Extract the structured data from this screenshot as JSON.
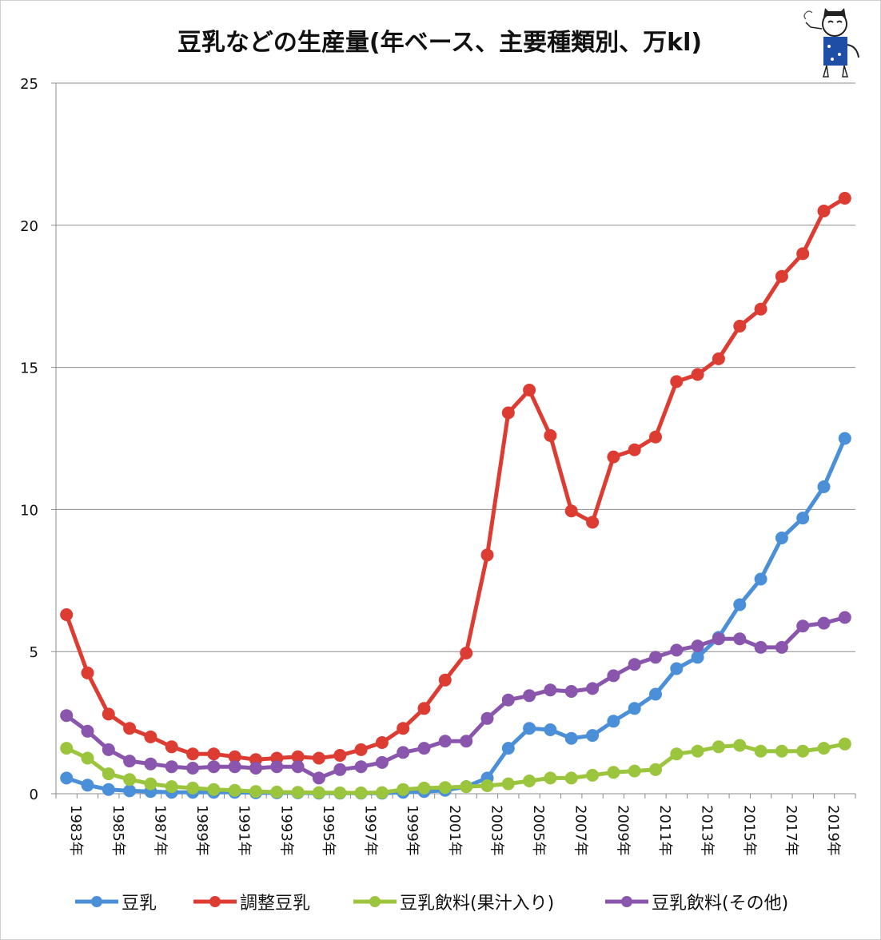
{
  "chart_data": {
    "type": "line",
    "title": "豆乳などの生産量(年ベース、主要種類別、万kl)",
    "ylim": [
      0,
      25
    ],
    "yticks": [
      "0",
      "5",
      "10",
      "15",
      "20",
      "25"
    ],
    "xtick_labels": [
      "1983年",
      "1985年",
      "1987年",
      "1989年",
      "1991年",
      "1993年",
      "1995年",
      "1997年",
      "1999年",
      "2001年",
      "2003年",
      "2005年",
      "2007年",
      "2009年",
      "2011年",
      "2013年",
      "2015年",
      "2017年",
      "2019年"
    ],
    "x": [
      1983,
      1984,
      1985,
      1986,
      1987,
      1988,
      1989,
      1990,
      1991,
      1992,
      1993,
      1994,
      1995,
      1996,
      1997,
      1998,
      1999,
      2000,
      2001,
      2002,
      2003,
      2004,
      2005,
      2006,
      2007,
      2008,
      2009,
      2010,
      2011,
      2012,
      2013,
      2014,
      2015,
      2016,
      2017,
      2018,
      2019,
      2020
    ],
    "series": [
      {
        "name": "豆乳",
        "color": "#4a8fd8",
        "values": [
          0.55,
          0.3,
          0.15,
          0.1,
          0.08,
          0.05,
          0.05,
          0.05,
          0.05,
          0.03,
          0.03,
          0.03,
          0.02,
          0.02,
          0.02,
          0.02,
          0.05,
          0.08,
          0.12,
          0.25,
          0.55,
          1.6,
          2.3,
          2.25,
          1.95,
          2.05,
          2.55,
          3.0,
          3.5,
          4.4,
          4.8,
          5.5,
          6.65,
          7.55,
          9.0,
          9.7,
          10.8,
          12.5
        ]
      },
      {
        "name": "調整豆乳",
        "color": "#dd3c33",
        "values": [
          6.3,
          4.25,
          2.8,
          2.3,
          2.0,
          1.65,
          1.4,
          1.4,
          1.3,
          1.2,
          1.25,
          1.3,
          1.25,
          1.35,
          1.55,
          1.8,
          2.3,
          3.0,
          4.0,
          4.95,
          8.4,
          13.4,
          14.2,
          12.6,
          9.95,
          9.55,
          11.85,
          12.1,
          12.55,
          14.5,
          14.75,
          15.3,
          16.45,
          17.05,
          18.2,
          19.0,
          20.5,
          20.95
        ]
      },
      {
        "name": "豆乳飲料(果汁入り)",
        "color": "#9bc53d",
        "values": [
          1.6,
          1.25,
          0.7,
          0.5,
          0.35,
          0.25,
          0.2,
          0.15,
          0.12,
          0.08,
          0.06,
          0.05,
          0.04,
          0.03,
          0.03,
          0.04,
          0.15,
          0.2,
          0.22,
          0.25,
          0.28,
          0.35,
          0.45,
          0.55,
          0.55,
          0.65,
          0.75,
          0.8,
          0.85,
          1.4,
          1.5,
          1.65,
          1.7,
          1.5,
          1.5,
          1.5,
          1.6,
          1.75
        ]
      },
      {
        "name": "豆乳飲料(その他)",
        "color": "#8a55ac",
        "values": [
          2.75,
          2.2,
          1.55,
          1.15,
          1.05,
          0.95,
          0.9,
          0.95,
          0.95,
          0.9,
          0.95,
          0.95,
          0.55,
          0.85,
          0.95,
          1.1,
          1.45,
          1.6,
          1.85,
          1.85,
          2.65,
          3.3,
          3.45,
          3.65,
          3.6,
          3.7,
          4.15,
          4.55,
          4.8,
          5.05,
          5.2,
          5.45,
          5.45,
          5.15,
          5.15,
          5.9,
          6.0,
          6.2
        ]
      }
    ]
  }
}
